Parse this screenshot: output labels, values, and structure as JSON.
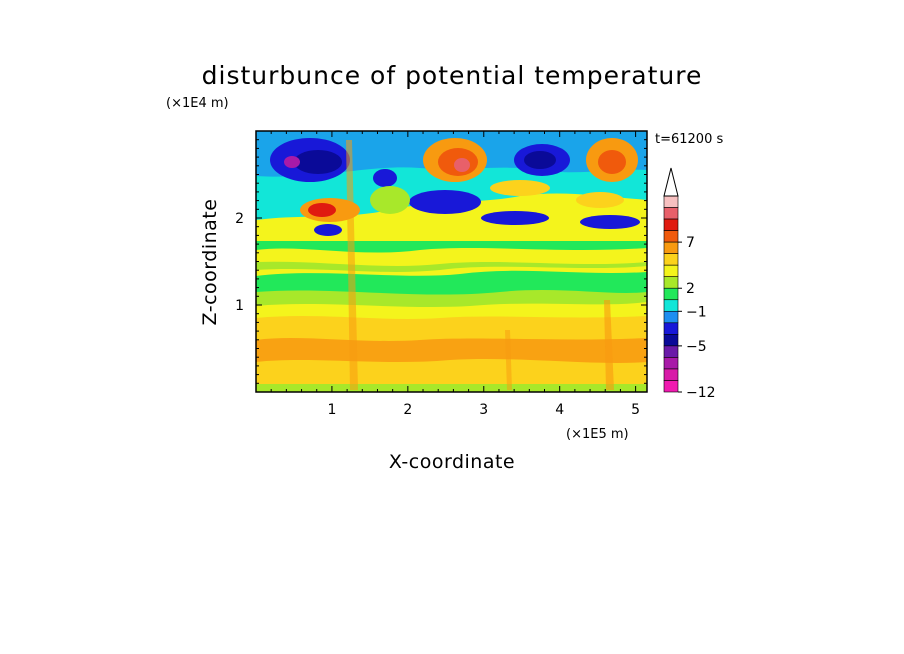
{
  "chart_data": {
    "type": "heatmap",
    "title": "disturbunce of potential temperature",
    "xlabel": "X-coordinate",
    "ylabel": "Z-coordinate",
    "x_scale_note": "(×1E5 m)",
    "y_scale_note": "(×1E4 m)",
    "time_label": "t=61200 s",
    "xlim": [
      0,
      5.15
    ],
    "ylim": [
      0,
      3.0
    ],
    "x_ticks": [
      "1",
      "2",
      "3",
      "4",
      "5"
    ],
    "y_ticks": [
      "1",
      "2"
    ],
    "colorbar": {
      "tick_labels": [
        "7",
        "2",
        "−1",
        "−5",
        "−12"
      ],
      "levels_top_to_bottom": [
        {
          "color": "#f7c0c0"
        },
        {
          "color": "#e8606a"
        },
        {
          "color": "#e01a10"
        },
        {
          "color": "#f05a0c"
        },
        {
          "color": "#f89a10"
        },
        {
          "color": "#fcd21c"
        },
        {
          "color": "#f4f41c"
        },
        {
          "color": "#a8e82a"
        },
        {
          "color": "#22e85a"
        },
        {
          "color": "#12e6d8"
        },
        {
          "color": "#1e8ef0"
        },
        {
          "color": "#1818d8"
        },
        {
          "color": "#0a0a98"
        },
        {
          "color": "#6a1aa8"
        },
        {
          "color": "#a81aa8"
        },
        {
          "color": "#d81aa8"
        },
        {
          "color": "#f01ab0"
        }
      ],
      "extend_top_arrow": true
    }
  }
}
